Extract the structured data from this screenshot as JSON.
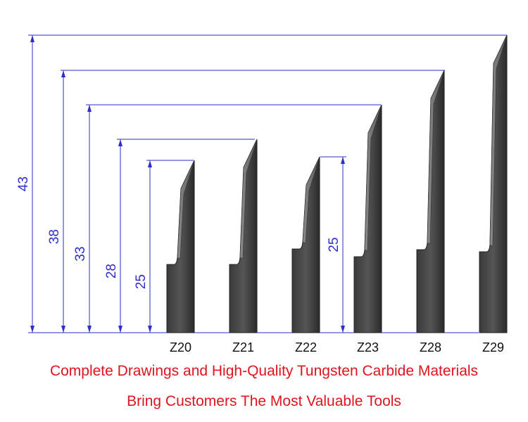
{
  "dimensions": [
    43,
    38,
    33,
    28,
    25,
    25
  ],
  "blades": [
    "Z20",
    "Z21",
    "Z22",
    "Z23",
    "Z28",
    "Z29"
  ],
  "caption": {
    "line1": "Complete Drawings and High-Quality Tungsten Carbide Materials",
    "line2": "Bring Customers The Most Valuable Tools"
  }
}
